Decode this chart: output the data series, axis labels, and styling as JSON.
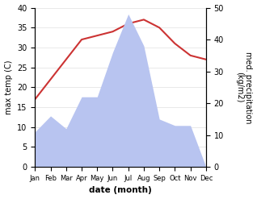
{
  "months": [
    "Jan",
    "Feb",
    "Mar",
    "Apr",
    "May",
    "Jun",
    "Jul",
    "Aug",
    "Sep",
    "Oct",
    "Nov",
    "Dec"
  ],
  "temperature": [
    17,
    22,
    27,
    32,
    33,
    34,
    36,
    37,
    35,
    31,
    28,
    27
  ],
  "precipitation": [
    11,
    16,
    12,
    22,
    22,
    36,
    48,
    38,
    15,
    13,
    13,
    0
  ],
  "temp_color": "#cc3333",
  "precip_color": "#b8c4f0",
  "temp_ylim": [
    0,
    40
  ],
  "precip_ylim": [
    0,
    50
  ],
  "xlabel": "date (month)",
  "ylabel_left": "max temp (C)",
  "ylabel_right": "med. precipitation\n(kg/m2)",
  "tick_labelsize": 7,
  "axis_labelsize": 7
}
